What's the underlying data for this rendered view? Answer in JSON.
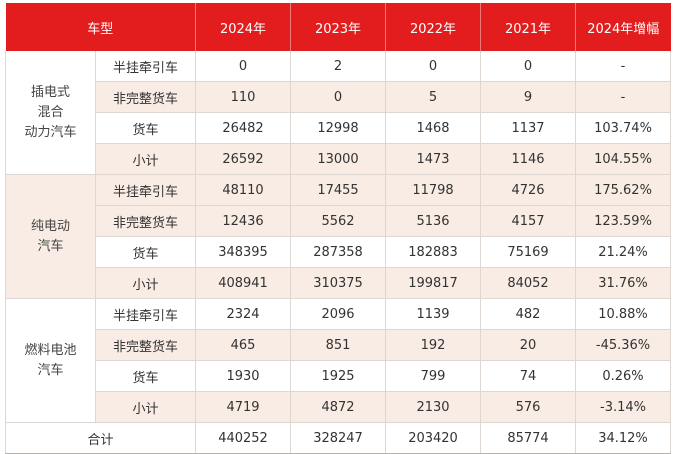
{
  "headers": [
    "车型",
    "2024年",
    "2023年",
    "2022年",
    "2021年",
    "2024年增幅"
  ],
  "groups": [
    {
      "name_lines": [
        "插电式",
        "混合",
        "动力汽车"
      ],
      "rows": [
        {
          "type": "半挂牵引车",
          "v2024": "0",
          "v2023": "2",
          "v2022": "0",
          "v2021": "0",
          "growth": "-"
        },
        {
          "type": "非完整货车",
          "v2024": "110",
          "v2023": "0",
          "v2022": "5",
          "v2021": "9",
          "growth": "-"
        },
        {
          "type": "货车",
          "v2024": "26482",
          "v2023": "12998",
          "v2022": "1468",
          "v2021": "1137",
          "growth": "103.74%"
        },
        {
          "type": "小计",
          "v2024": "26592",
          "v2023": "13000",
          "v2022": "1473",
          "v2021": "1146",
          "growth": "104.55%"
        }
      ]
    },
    {
      "name_lines": [
        "纯电动",
        "汽车"
      ],
      "rows": [
        {
          "type": "半挂牵引车",
          "v2024": "48110",
          "v2023": "17455",
          "v2022": "11798",
          "v2021": "4726",
          "growth": "175.62%"
        },
        {
          "type": "非完整货车",
          "v2024": "12436",
          "v2023": "5562",
          "v2022": "5136",
          "v2021": "4157",
          "growth": "123.59%"
        },
        {
          "type": "货车",
          "v2024": "348395",
          "v2023": "287358",
          "v2022": "182883",
          "v2021": "75169",
          "growth": "21.24%"
        },
        {
          "type": "小计",
          "v2024": "408941",
          "v2023": "310375",
          "v2022": "199817",
          "v2021": "84052",
          "growth": "31.76%"
        }
      ]
    },
    {
      "name_lines": [
        "燃料电池",
        "汽车"
      ],
      "rows": [
        {
          "type": "半挂牵引车",
          "v2024": "2324",
          "v2023": "2096",
          "v2022": "1139",
          "v2021": "482",
          "growth": "10.88%"
        },
        {
          "type": "非完整货车",
          "v2024": "465",
          "v2023": "851",
          "v2022": "192",
          "v2021": "20",
          "growth": "-45.36%"
        },
        {
          "type": "货车",
          "v2024": "1930",
          "v2023": "1925",
          "v2022": "799",
          "v2021": "74",
          "growth": "0.26%"
        },
        {
          "type": "小计",
          "v2024": "4719",
          "v2023": "4872",
          "v2022": "2130",
          "v2021": "576",
          "growth": "-3.14%"
        }
      ]
    }
  ],
  "total": {
    "label": "合计",
    "v2024": "440252",
    "v2023": "328247",
    "v2022": "203420",
    "v2021": "85774",
    "growth": "34.12%"
  },
  "colors": {
    "header_bg": "#e31d1d",
    "header_text": "#ffffff",
    "alt_row": "#f8ece4",
    "grid": "#ded6d0"
  }
}
